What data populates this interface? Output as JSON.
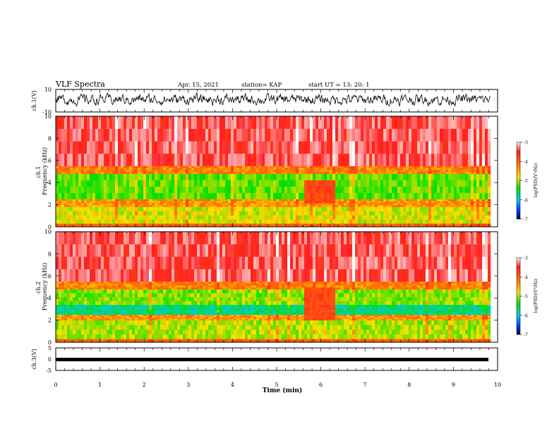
{
  "header": {
    "title": "VLF Spectra",
    "date": "Apr. 15, 2021",
    "station": "station= KAP",
    "start": "start  UT  =   13: 20: 1"
  },
  "chart_data": [
    {
      "type": "line",
      "id": "ch1-waveform",
      "ylabel": "ch.1(V)",
      "yticks": [
        "10",
        "-10"
      ],
      "ylim": [
        -10,
        10
      ],
      "xlim": [
        0,
        10
      ],
      "trace": "noisy black waveform, roughly between -6 and +8 V, spanning 0 to 9.85 min"
    },
    {
      "type": "heatmap",
      "id": "ch1-spectrogram",
      "ylabel": "ch.1\nFrequency  (kHz)",
      "yticks": [
        "0",
        "2",
        "4",
        "6",
        "8",
        "10"
      ],
      "ylim": [
        0,
        10
      ],
      "xlim": [
        0,
        10
      ],
      "data_end_min": 9.85,
      "colorbar": {
        "label": "log(PSD)(V²/Hz)",
        "ticks": [
          "-3",
          "-4",
          "-5",
          "-6",
          "-7"
        ],
        "range": [
          -7,
          -3
        ]
      },
      "bands": [
        {
          "f_khz": [
            0,
            0.3
          ],
          "log_psd": -4.0
        },
        {
          "f_khz": [
            0.3,
            1.8
          ],
          "log_psd": -4.7
        },
        {
          "f_khz": [
            1.8,
            2.5
          ],
          "log_psd": -4.3
        },
        {
          "f_khz": [
            2.5,
            4.8
          ],
          "log_psd": -5.0
        },
        {
          "f_khz": [
            4.8,
            5.5
          ],
          "log_psd": -4.2
        },
        {
          "f_khz": [
            5.5,
            10
          ],
          "log_psd": -3.4
        }
      ],
      "event": {
        "t_min": [
          5.6,
          6.3
        ],
        "f_khz": [
          2.0,
          4.6
        ],
        "log_psd": -3.8
      }
    },
    {
      "type": "heatmap",
      "id": "ch2-spectrogram",
      "ylabel": "ch.2\nFrequency  (kHz)",
      "yticks": [
        "0",
        "2",
        "4",
        "6",
        "8",
        "10"
      ],
      "ylim": [
        0,
        10
      ],
      "xlim": [
        0,
        10
      ],
      "data_end_min": 9.85,
      "colorbar": {
        "label": "log(PSD)(V²/Hz)",
        "ticks": [
          "-3",
          "-4",
          "-5",
          "-6",
          "-7"
        ],
        "range": [
          -7,
          -3
        ]
      },
      "bands": [
        {
          "f_khz": [
            0,
            0.3
          ],
          "log_psd": -4.0
        },
        {
          "f_khz": [
            0.3,
            2.0
          ],
          "log_psd": -4.8
        },
        {
          "f_khz": [
            2.0,
            2.5
          ],
          "log_psd": -4.3
        },
        {
          "f_khz": [
            2.5,
            3.4
          ],
          "log_psd": -5.5
        },
        {
          "f_khz": [
            3.4,
            4.8
          ],
          "log_psd": -4.9
        },
        {
          "f_khz": [
            4.8,
            5.5
          ],
          "log_psd": -4.2
        },
        {
          "f_khz": [
            5.5,
            10
          ],
          "log_psd": -3.4
        }
      ],
      "event": {
        "t_min": [
          5.6,
          6.3
        ],
        "f_khz": [
          2.0,
          5.0
        ],
        "log_psd": -3.8
      }
    },
    {
      "type": "line",
      "id": "ch3-waveform",
      "ylabel": "ch.3(V)",
      "yticks": [
        "5",
        "0",
        "-5"
      ],
      "ylim": [
        -5,
        5
      ],
      "xlim": [
        0,
        10
      ],
      "level_v": 0,
      "trace": "thick flat black band near 0 V spanning 0 to 9.85 min"
    }
  ],
  "xaxis": {
    "label": "Time  (min)",
    "ticks": [
      "0",
      "1",
      "2",
      "3",
      "4",
      "5",
      "6",
      "7",
      "8",
      "9",
      "10"
    ]
  }
}
